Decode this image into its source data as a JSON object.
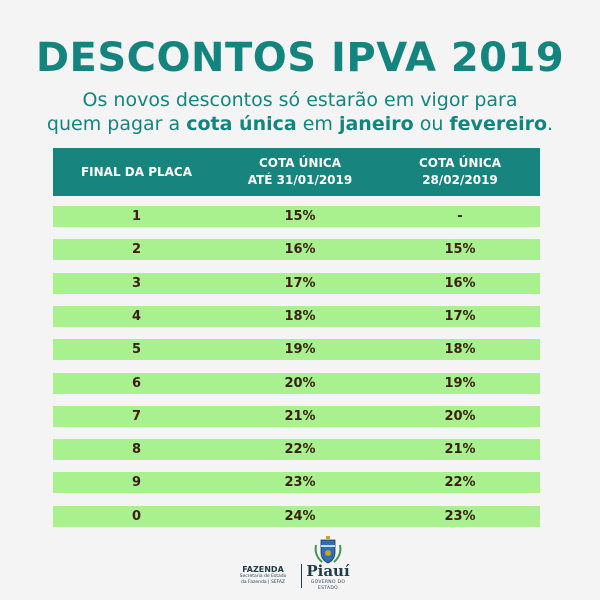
{
  "header": {
    "title": "DESCONTOS IPVA 2019",
    "subtitle_line1": "Os novos descontos só estarão em vigor para",
    "subtitle_line2_a": "quem pagar a ",
    "subtitle_line2_b": "cota única",
    "subtitle_line2_c": " em ",
    "subtitle_line2_d": "janeiro",
    "subtitle_line2_e": " ou ",
    "subtitle_line2_f": "fevereiro",
    "subtitle_line2_g": "."
  },
  "table": {
    "columns": [
      {
        "line1": "FINAL DA PLACA",
        "line2": ""
      },
      {
        "line1": "COTA ÚNICA",
        "line2": "ATÉ 31/01/2019"
      },
      {
        "line1": "COTA ÚNICA",
        "line2": "28/02/2019"
      }
    ],
    "rows": [
      [
        "1",
        "15%",
        "-"
      ],
      [
        "2",
        "16%",
        "15%"
      ],
      [
        "3",
        "17%",
        "16%"
      ],
      [
        "4",
        "18%",
        "17%"
      ],
      [
        "5",
        "19%",
        "18%"
      ],
      [
        "6",
        "20%",
        "19%"
      ],
      [
        "7",
        "21%",
        "20%"
      ],
      [
        "8",
        "22%",
        "21%"
      ],
      [
        "9",
        "23%",
        "22%"
      ],
      [
        "0",
        "24%",
        "23%"
      ]
    ]
  },
  "footer": {
    "fazenda_title": "FAZENDA",
    "fazenda_line1": "Secretaria de Estado",
    "fazenda_line2": "da Fazenda | SEFAZ",
    "state_name": "Piauí",
    "state_sub": "GOVERNO DO ESTADO"
  },
  "colors": {
    "brand_teal": "#14857e",
    "header_bg": "#17857e",
    "row_bg": "#a9f08f",
    "cell_text": "#3a1f12"
  }
}
